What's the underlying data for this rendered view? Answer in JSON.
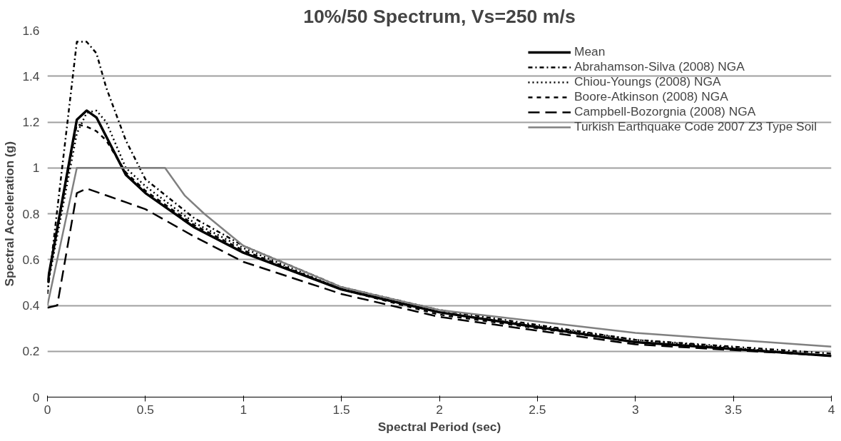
{
  "chart_data": {
    "type": "line",
    "title": "10%/50 Spectrum, Vs=250 m/s",
    "xlabel": "Spectral Period (sec)",
    "ylabel": "Spectral Acceleration (g)",
    "xlim": [
      0,
      4
    ],
    "xticks": [
      0,
      0.5,
      1,
      1.5,
      2,
      2.5,
      3,
      3.5,
      4
    ],
    "ylim": [
      0,
      1.6
    ],
    "yticks": [
      0,
      0.2,
      0.4,
      0.6,
      0.8,
      1,
      1.2,
      1.4,
      1.6
    ],
    "grid": "y",
    "legend": "top right",
    "series": [
      {
        "name": "Mean",
        "color": "#000000",
        "line_style": "solid",
        "x": [
          0,
          0.15,
          0.2,
          0.25,
          0.4,
          0.5,
          0.75,
          1,
          1.5,
          2,
          3,
          4
        ],
        "values": [
          0.5,
          1.21,
          1.25,
          1.22,
          0.97,
          0.89,
          0.74,
          0.63,
          0.47,
          0.37,
          0.24,
          0.18
        ]
      },
      {
        "name": "Abrahamson-Silva (2008) NGA",
        "color": "#000000",
        "line_style": "dashdot",
        "x": [
          0,
          0.15,
          0.2,
          0.25,
          0.3,
          0.4,
          0.5,
          0.75,
          1,
          1.5,
          2,
          3,
          4
        ],
        "values": [
          0.45,
          1.55,
          1.55,
          1.5,
          1.35,
          1.12,
          0.95,
          0.78,
          0.66,
          0.48,
          0.38,
          0.25,
          0.19
        ]
      },
      {
        "name": "Chiou-Youngs (2008) NGA",
        "color": "#000000",
        "line_style": "dotted",
        "x": [
          0,
          0.15,
          0.2,
          0.25,
          0.3,
          0.4,
          0.5,
          0.75,
          1,
          1.5,
          2,
          3,
          4
        ],
        "values": [
          0.48,
          1.15,
          1.24,
          1.25,
          1.2,
          1.0,
          0.92,
          0.76,
          0.65,
          0.47,
          0.37,
          0.25,
          0.18
        ]
      },
      {
        "name": "Boore-Atkinson (2008) NGA",
        "color": "#000000",
        "line_style": "dashed",
        "x": [
          0,
          0.15,
          0.2,
          0.25,
          0.3,
          0.4,
          0.5,
          0.75,
          1,
          1.5,
          2,
          3,
          4
        ],
        "values": [
          0.5,
          1.19,
          1.18,
          1.16,
          1.12,
          0.98,
          0.9,
          0.75,
          0.64,
          0.47,
          0.36,
          0.24,
          0.18
        ]
      },
      {
        "name": "Campbell-Bozorgnia (2008) NGA",
        "color": "#000000",
        "line_style": "longdash",
        "x": [
          0,
          0.05,
          0.15,
          0.2,
          0.3,
          0.4,
          0.5,
          0.75,
          1,
          1.5,
          2,
          3,
          4
        ],
        "values": [
          0.39,
          0.4,
          0.89,
          0.91,
          0.88,
          0.85,
          0.82,
          0.7,
          0.59,
          0.45,
          0.35,
          0.23,
          0.18
        ]
      },
      {
        "name": "Turkish Earthquake Code 2007 Z3 Type Soil",
        "color": "#808080",
        "line_style": "solid",
        "x": [
          0,
          0.15,
          0.6,
          0.7,
          0.8,
          1,
          1.5,
          2,
          3,
          4
        ],
        "values": [
          0.4,
          1,
          1,
          0.88,
          0.8,
          0.66,
          0.48,
          0.38,
          0.28,
          0.22
        ]
      }
    ]
  }
}
